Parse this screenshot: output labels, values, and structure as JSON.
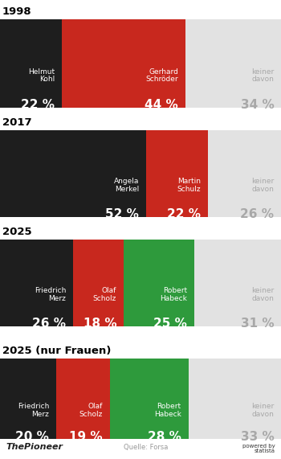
{
  "chart_data": [
    {
      "type": "bar",
      "title": "1998",
      "orientation": "horizontal",
      "stacked": true,
      "data_labels": true,
      "tick_labels": false,
      "categories": [
        null
      ],
      "xlim": [
        0,
        100
      ],
      "series": [
        {
          "name": "Helmut\nKohl",
          "color": "#1e1e1e",
          "values": [
            22
          ],
          "value_labels": [
            "22 %"
          ]
        },
        {
          "name": "Gerhard\nSchröder",
          "color": "#c8281e",
          "values": [
            44
          ],
          "value_labels": [
            "44 %"
          ]
        },
        {
          "name": "keiner\ndavon",
          "color": "#e2e2e2",
          "values": [
            34
          ],
          "value_labels": [
            "34 %"
          ]
        }
      ]
    },
    {
      "type": "bar",
      "title": "2017",
      "orientation": "horizontal",
      "stacked": true,
      "data_labels": true,
      "tick_labels": false,
      "categories": [
        null
      ],
      "xlim": [
        0,
        100
      ],
      "series": [
        {
          "name": "Angela\nMerkel",
          "color": "#1e1e1e",
          "values": [
            52
          ],
          "value_labels": [
            "52 %"
          ]
        },
        {
          "name": "Martin\nSchulz",
          "color": "#c8281e",
          "values": [
            22
          ],
          "value_labels": [
            "22 %"
          ]
        },
        {
          "name": "keiner\ndavon",
          "color": "#e2e2e2",
          "values": [
            26
          ],
          "value_labels": [
            "26 %"
          ]
        }
      ]
    },
    {
      "type": "bar",
      "title": "2025",
      "orientation": "horizontal",
      "stacked": true,
      "data_labels": true,
      "tick_labels": false,
      "categories": [
        null
      ],
      "xlim": [
        0,
        100
      ],
      "series": [
        {
          "name": "Friedrich\nMerz",
          "color": "#1e1e1e",
          "values": [
            26
          ],
          "value_labels": [
            "26 %"
          ]
        },
        {
          "name": "Olaf\nScholz",
          "color": "#c8281e",
          "values": [
            18
          ],
          "value_labels": [
            "18 %"
          ]
        },
        {
          "name": "Robert\nHabeck",
          "color": "#2e9a3c",
          "values": [
            25
          ],
          "value_labels": [
            "25 %"
          ]
        },
        {
          "name": "keiner\ndavon",
          "color": "#e2e2e2",
          "values": [
            31
          ],
          "value_labels": [
            "31 %"
          ]
        }
      ]
    },
    {
      "type": "bar",
      "title": "2025 (nur Frauen)",
      "orientation": "horizontal",
      "stacked": true,
      "data_labels": true,
      "tick_labels": false,
      "categories": [
        null
      ],
      "xlim": [
        0,
        100
      ],
      "series": [
        {
          "name": "Friedrich\nMerz",
          "color": "#1e1e1e",
          "values": [
            20
          ],
          "value_labels": [
            "20 %"
          ]
        },
        {
          "name": "Olaf\nScholz",
          "color": "#c8281e",
          "values": [
            19
          ],
          "value_labels": [
            "19 %"
          ]
        },
        {
          "name": "Robert\nHabeck",
          "color": "#2e9a3c",
          "values": [
            28
          ],
          "value_labels": [
            "28 %"
          ]
        },
        {
          "name": "keiner\ndavon",
          "color": "#e2e2e2",
          "values": [
            33
          ],
          "value_labels": [
            "33 %"
          ]
        }
      ]
    }
  ],
  "footer": {
    "brand": "ThePioneer",
    "source": "Quelle: Forsa",
    "credit": "powered by\nstatista"
  }
}
